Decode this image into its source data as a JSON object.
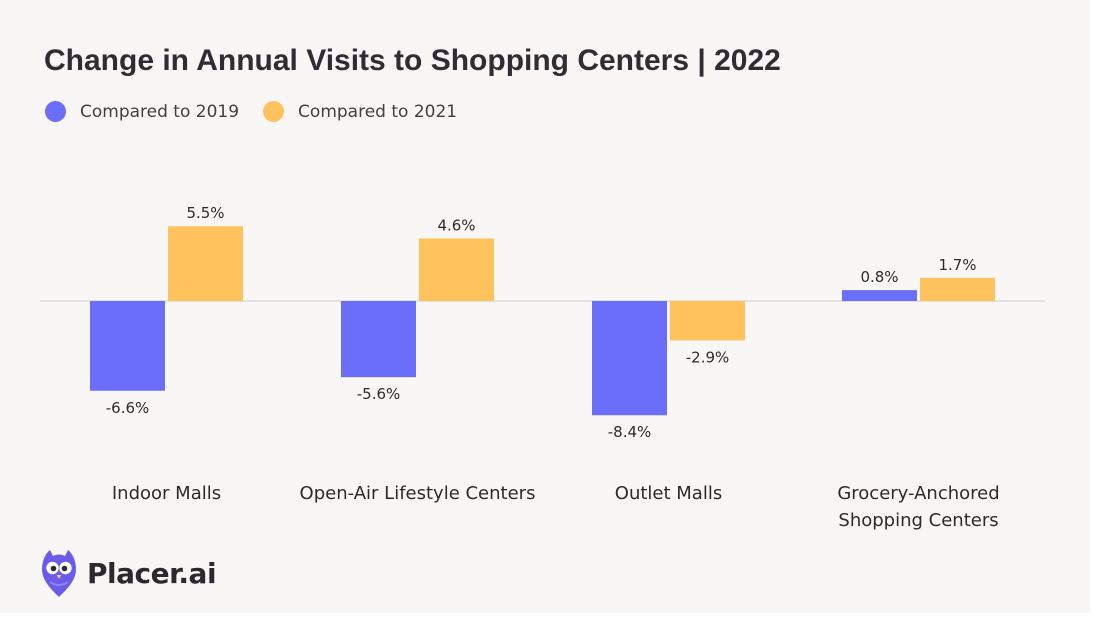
{
  "brand": {
    "name": "Placer.ai"
  },
  "chart_data": {
    "type": "bar",
    "title": "Change in Annual Visits to Shopping Centers | 2022",
    "categories": [
      [
        "Indoor Malls"
      ],
      [
        "Open-Air Lifestyle Centers"
      ],
      [
        "Outlet Malls"
      ],
      [
        "Grocery-Anchored",
        "Shopping Centers"
      ]
    ],
    "series": [
      {
        "name": "Compared to 2019",
        "color": "#6b6ef9",
        "values": [
          -6.6,
          -5.6,
          -8.4,
          0.8
        ],
        "labels": [
          "-6.6%",
          "-5.6%",
          "-8.4%",
          "0.8%"
        ]
      },
      {
        "name": "Compared to 2021",
        "color": "#ffc25c",
        "values": [
          5.5,
          4.6,
          -2.9,
          1.7
        ],
        "labels": [
          "5.5%",
          "4.6%",
          "-2.9%",
          "1.7%"
        ]
      }
    ],
    "legend_position": "top-left",
    "grid": false,
    "baseline": 0
  }
}
